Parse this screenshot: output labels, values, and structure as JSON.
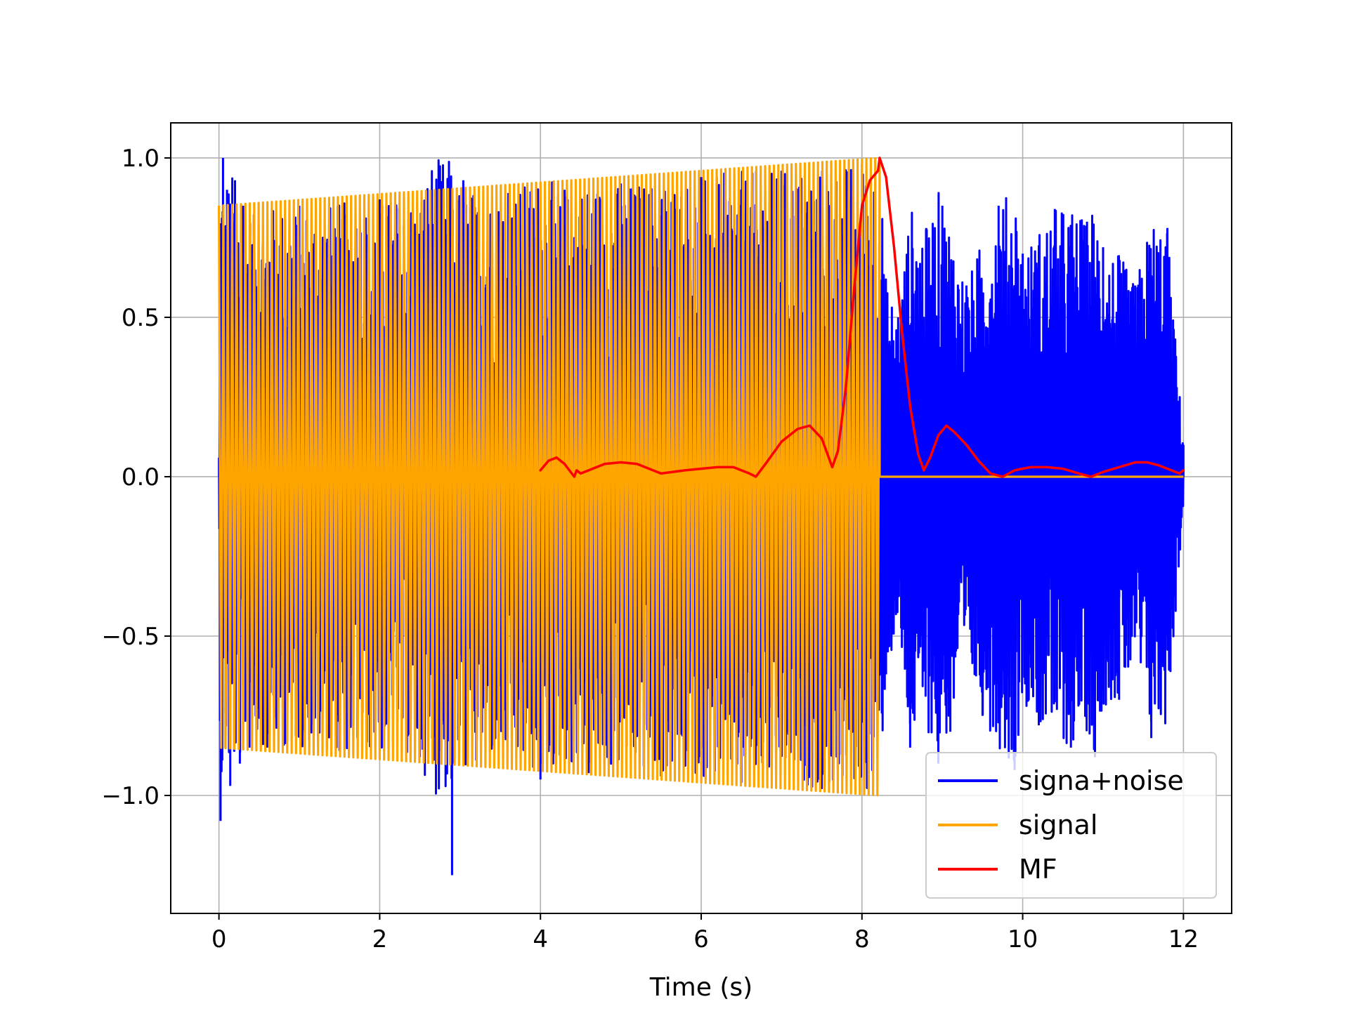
{
  "chart_data": {
    "type": "line",
    "title": "",
    "xlabel": "Time (s)",
    "ylabel": "",
    "xlim": [
      -0.6,
      12.6
    ],
    "ylim": [
      -1.37,
      1.11
    ],
    "grid": true,
    "legend_placement": "lower-right",
    "xticks": [
      {
        "value": 0,
        "label": "0"
      },
      {
        "value": 2,
        "label": "2"
      },
      {
        "value": 4,
        "label": "4"
      },
      {
        "value": 6,
        "label": "6"
      },
      {
        "value": 8,
        "label": "8"
      },
      {
        "value": 10,
        "label": "10"
      },
      {
        "value": 12,
        "label": "12"
      }
    ],
    "yticks": [
      {
        "value": 1.0,
        "label": "1.0"
      },
      {
        "value": 0.5,
        "label": "0.5"
      },
      {
        "value": 0.0,
        "label": "0.0"
      },
      {
        "value": -0.5,
        "label": "−0.5"
      },
      {
        "value": -1.0,
        "label": "−1.0"
      }
    ],
    "series": [
      {
        "name": "signa+noise",
        "color": "#0000ff",
        "description_range": [
          0,
          12
        ],
        "values": {
          "x": [
            0.0,
            0.02,
            0.05,
            0.08,
            0.1,
            0.14,
            0.2,
            0.26,
            0.3,
            0.38,
            0.44,
            0.6,
            1.0,
            1.5,
            2.0,
            2.5,
            2.9,
            2.92,
            3.04,
            3.2,
            3.6,
            4.0,
            4.3,
            4.6,
            5.0,
            5.5,
            6.0,
            6.5,
            7.0,
            7.5,
            8.0,
            8.22,
            8.3,
            8.45,
            8.6,
            8.8,
            8.95,
            9.0,
            9.1,
            9.3,
            9.5,
            9.7,
            9.9,
            10.0,
            10.2,
            10.4,
            10.6,
            10.8,
            10.9,
            11.0,
            11.2,
            11.4,
            11.6,
            11.8,
            12.0
          ],
          "y": [
            0.06,
            -1.08,
            1.0,
            -0.85,
            0.9,
            -0.97,
            0.93,
            -0.9,
            0.85,
            -0.85,
            0.82,
            -0.85,
            0.85,
            -0.86,
            0.87,
            -0.88,
            -1.25,
            -0.9,
            0.93,
            -0.89,
            0.89,
            -0.95,
            0.9,
            -0.93,
            0.92,
            -0.94,
            0.94,
            -0.96,
            0.96,
            -0.98,
            0.98,
            1.0,
            -0.62,
            0.5,
            -0.85,
            0.78,
            -0.9,
            0.85,
            -0.8,
            0.6,
            -0.75,
            0.85,
            -0.92,
            0.7,
            -0.78,
            0.84,
            -0.85,
            0.8,
            -0.88,
            0.72,
            -0.7,
            0.6,
            -0.82,
            0.78,
            0.1
          ]
        }
      },
      {
        "name": "signal",
        "color": "#ffa500",
        "chirp_start": 0.0,
        "chirp_end": 8.22,
        "amplitude_start": 0.85,
        "amplitude_end": 1.0,
        "values": {
          "x": [
            0.0,
            8.22,
            8.23,
            12.0
          ],
          "y_envelope_upper": [
            0.85,
            1.0,
            0.0,
            0.0
          ],
          "y_envelope_lower": [
            -0.85,
            -1.0,
            0.0,
            0.0
          ]
        }
      },
      {
        "name": "MF",
        "color": "#ff0000",
        "values": {
          "x": [
            4.0,
            4.1,
            4.2,
            4.3,
            4.42,
            4.45,
            4.5,
            4.6,
            4.8,
            5.0,
            5.2,
            5.5,
            5.8,
            6.0,
            6.2,
            6.4,
            6.6,
            6.68,
            6.8,
            7.0,
            7.2,
            7.35,
            7.5,
            7.63,
            7.7,
            7.8,
            7.9,
            8.0,
            8.1,
            8.2,
            8.22,
            8.3,
            8.4,
            8.5,
            8.6,
            8.7,
            8.77,
            8.85,
            8.95,
            9.05,
            9.15,
            9.3,
            9.45,
            9.6,
            9.75,
            9.9,
            10.1,
            10.3,
            10.5,
            10.7,
            10.85,
            11.0,
            11.2,
            11.4,
            11.55,
            11.7,
            11.85,
            11.95,
            12.0
          ],
          "y": [
            0.02,
            0.05,
            0.06,
            0.04,
            0.0,
            0.02,
            0.01,
            0.02,
            0.04,
            0.045,
            0.04,
            0.01,
            0.02,
            0.025,
            0.03,
            0.03,
            0.01,
            0.0,
            0.04,
            0.11,
            0.15,
            0.16,
            0.12,
            0.03,
            0.08,
            0.28,
            0.58,
            0.85,
            0.93,
            0.96,
            1.0,
            0.94,
            0.72,
            0.45,
            0.22,
            0.07,
            0.02,
            0.06,
            0.13,
            0.16,
            0.14,
            0.1,
            0.05,
            0.01,
            0.0,
            0.02,
            0.03,
            0.03,
            0.025,
            0.01,
            0.0,
            0.015,
            0.03,
            0.045,
            0.045,
            0.035,
            0.02,
            0.01,
            0.02
          ]
        }
      }
    ],
    "legend": [
      {
        "label": "signa+noise",
        "color": "#0000ff"
      },
      {
        "label": "signal",
        "color": "#ffa500"
      },
      {
        "label": "MF",
        "color": "#ff0000"
      }
    ]
  }
}
